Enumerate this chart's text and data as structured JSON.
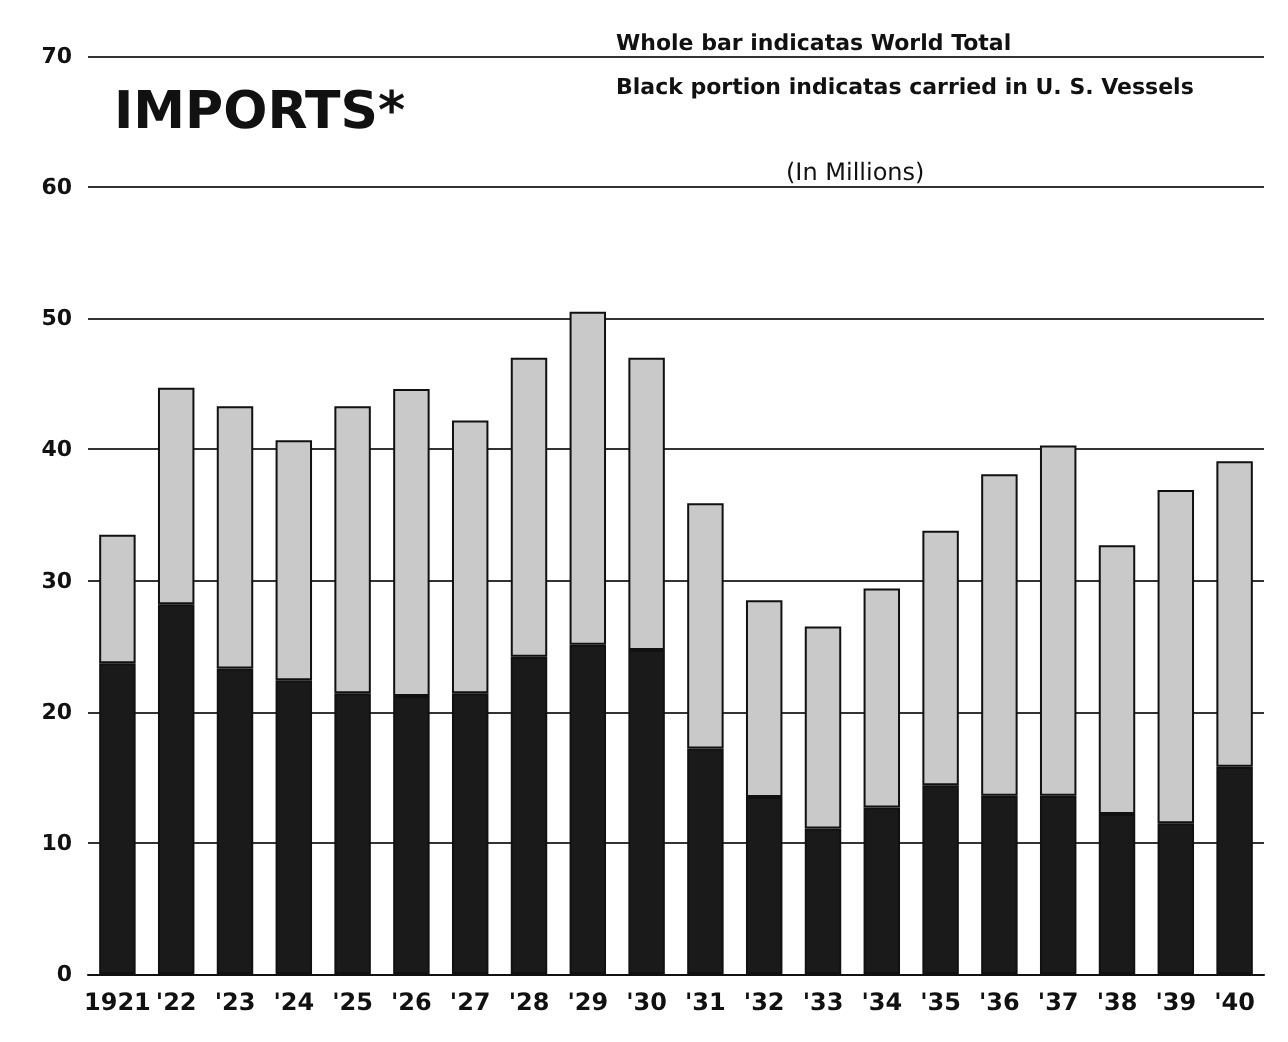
{
  "chart_data": {
    "type": "bar",
    "stacked": true,
    "title": "IMPORTS*",
    "annotations": [
      "Whole bar indicatas World Total",
      "Black portion indicatas carried in U. S. Vessels",
      "(In Millions)"
    ],
    "categories": [
      "1921",
      "'22",
      "'23",
      "'24",
      "'25",
      "'26",
      "'27",
      "'28",
      "'29",
      "'30",
      "'31",
      "'32",
      "'33",
      "'34",
      "'35",
      "'36",
      "'37",
      "'38",
      "'39",
      "'40"
    ],
    "series": [
      {
        "color": "#1a1a1a",
        "values": [
          23.7,
          28.2,
          23.3,
          22.4,
          21.4,
          21.2,
          21.4,
          24.2,
          25.1,
          24.7,
          17.2,
          13.5,
          11.1,
          12.7,
          14.4,
          13.6,
          13.6,
          12.2,
          11.5,
          15.8
        ]
      },
      {
        "color": "#c9c9c9",
        "values": [
          9.8,
          16.5,
          20.0,
          18.3,
          21.9,
          23.4,
          20.8,
          22.8,
          25.4,
          22.3,
          18.7,
          15.0,
          15.4,
          16.7,
          19.4,
          24.5,
          26.7,
          20.5,
          25.4,
          23.3
        ]
      }
    ],
    "ylim": [
      0,
      70
    ],
    "yticks": [
      0,
      10,
      20,
      30,
      40,
      50,
      60,
      70
    ],
    "grid": "y"
  }
}
